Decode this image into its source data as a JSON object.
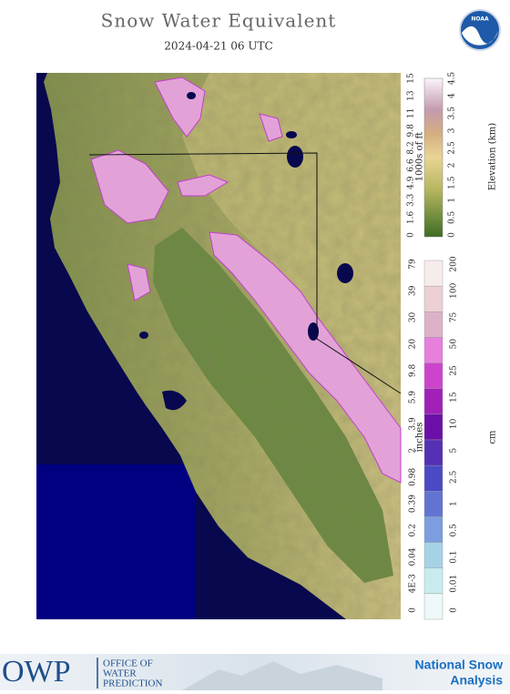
{
  "header": {
    "title": "Snow Water Equivalent",
    "subtitle": "2024-04-21 06 UTC",
    "logo": "NOAA"
  },
  "elevation_legend": {
    "left_title": "1000s of ft",
    "right_title": "Elevation (km)",
    "left_labels": [
      "15",
      "13",
      "11",
      "9.8",
      "8.2",
      "6.6",
      "4.9",
      "3.3",
      "1.6",
      "0"
    ],
    "right_labels": [
      "4.5",
      "4",
      "3.5",
      "3",
      "2.5",
      "2",
      "1.5",
      "1",
      "0.5",
      "0"
    ]
  },
  "snow_legend": {
    "left_title": "inches",
    "right_title": "cm",
    "left_labels": [
      "79",
      "39",
      "30",
      "20",
      "9.8",
      "5.9",
      "3.9",
      "2",
      "0.98",
      "0.39",
      "0.2",
      "0.04",
      "4E-3",
      "0"
    ],
    "right_labels": [
      "200",
      "100",
      "75",
      "50",
      "25",
      "15",
      "10",
      "5",
      "2.5",
      "1",
      "0.5",
      "0.1",
      "0.01",
      "0"
    ]
  },
  "footer": {
    "logo": "OWP",
    "org": [
      "OFFICE OF",
      "WATER",
      "PREDICTION"
    ],
    "product": [
      "National Snow",
      "Analysis"
    ]
  }
}
